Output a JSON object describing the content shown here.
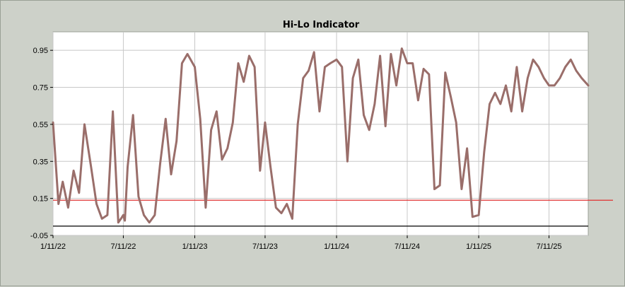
{
  "chart_data": {
    "type": "line",
    "title": "Hi-Lo Indicator",
    "xlabel": "",
    "ylabel": "",
    "x_range": [
      "1/11/22",
      "10/20/25"
    ],
    "ylim": [
      -0.05,
      1.05
    ],
    "yticks": [
      -0.05,
      0.15,
      0.35,
      0.55,
      0.75,
      0.95
    ],
    "ytick_labels": [
      "-0.05",
      "0.15",
      "0.35",
      "0.55",
      "0.75",
      "0.95"
    ],
    "xticks": [
      "1/11/22",
      "7/11/22",
      "1/11/23",
      "7/11/23",
      "1/11/24",
      "7/11/24",
      "1/11/25",
      "7/11/25"
    ],
    "xtick_labels": [
      "1/11/22",
      "7/11/22",
      "1/11/23",
      "7/11/23",
      "1/11/24",
      "7/11/24",
      "1/11/25",
      "7/11/25"
    ],
    "grid": true,
    "reference_lines": [
      {
        "y": 0.14,
        "color": "#e03030"
      },
      {
        "y": 0.0,
        "color": "#000000"
      }
    ],
    "series": [
      {
        "color": "#9a6e6a",
        "x": [
          "1/11/22",
          "1/25/22",
          "2/5/22",
          "2/19/22",
          "3/5/22",
          "3/19/22",
          "4/2/22",
          "4/19/22",
          "5/3/22",
          "5/17/22",
          "5/31/22",
          "6/14/22",
          "6/28/22",
          "7/5/22",
          "7/11/22",
          "7/15/22",
          "7/22/22",
          "8/5/22",
          "8/19/22",
          "9/2/22",
          "9/16/22",
          "9/30/22",
          "10/14/22",
          "10/28/22",
          "11/11/22",
          "11/25/22",
          "12/9/22",
          "12/23/22",
          "1/11/23",
          "1/25/23",
          "2/8/23",
          "2/22/23",
          "3/8/23",
          "3/22/23",
          "4/5/23",
          "4/19/23",
          "5/3/23",
          "5/17/23",
          "5/31/23",
          "6/14/23",
          "6/28/23",
          "7/11/23",
          "7/25/23",
          "8/8/23",
          "8/22/23",
          "9/5/23",
          "9/19/23",
          "10/3/23",
          "10/17/23",
          "10/31/23",
          "11/14/23",
          "11/28/23",
          "12/12/23",
          "12/26/23",
          "1/11/24",
          "1/25/24",
          "2/8/24",
          "2/22/24",
          "3/7/24",
          "3/21/24",
          "4/4/24",
          "4/18/24",
          "5/2/24",
          "5/16/24",
          "5/30/24",
          "6/13/24",
          "6/27/24",
          "7/11/24",
          "7/25/24",
          "8/8/24",
          "8/22/24",
          "9/5/24",
          "9/19/24",
          "10/3/24",
          "10/17/24",
          "10/31/24",
          "11/14/24",
          "11/28/24",
          "12/12/24",
          "12/26/24",
          "1/11/25",
          "1/25/25",
          "2/8/25",
          "2/22/25",
          "3/8/25",
          "3/22/25",
          "4/5/25",
          "4/19/25",
          "5/3/25",
          "5/17/25",
          "5/31/25",
          "6/14/25",
          "6/28/25",
          "7/11/25",
          "7/25/25",
          "8/8/25",
          "8/22/25",
          "9/5/25",
          "9/19/25",
          "10/3/25",
          "10/20/25"
        ],
        "values": [
          0.56,
          0.12,
          0.24,
          0.1,
          0.3,
          0.18,
          0.55,
          0.32,
          0.12,
          0.04,
          0.06,
          0.62,
          0.02,
          0.04,
          0.06,
          0.03,
          0.32,
          0.6,
          0.16,
          0.06,
          0.02,
          0.06,
          0.34,
          0.58,
          0.28,
          0.46,
          0.88,
          0.93,
          0.86,
          0.58,
          0.1,
          0.52,
          0.62,
          0.36,
          0.42,
          0.56,
          0.88,
          0.78,
          0.92,
          0.86,
          0.3,
          0.56,
          0.32,
          0.1,
          0.07,
          0.12,
          0.04,
          0.55,
          0.8,
          0.84,
          0.94,
          0.62,
          0.86,
          0.88,
          0.9,
          0.86,
          0.35,
          0.8,
          0.9,
          0.6,
          0.52,
          0.66,
          0.92,
          0.54,
          0.93,
          0.76,
          0.96,
          0.88,
          0.88,
          0.68,
          0.85,
          0.82,
          0.2,
          0.22,
          0.83,
          0.7,
          0.56,
          0.2,
          0.42,
          0.05,
          0.06,
          0.4,
          0.66,
          0.72,
          0.66,
          0.76,
          0.62,
          0.86,
          0.62,
          0.8,
          0.9,
          0.86,
          0.8,
          0.76,
          0.76,
          0.8,
          0.86,
          0.9,
          0.84,
          0.8,
          0.76
        ]
      }
    ]
  }
}
